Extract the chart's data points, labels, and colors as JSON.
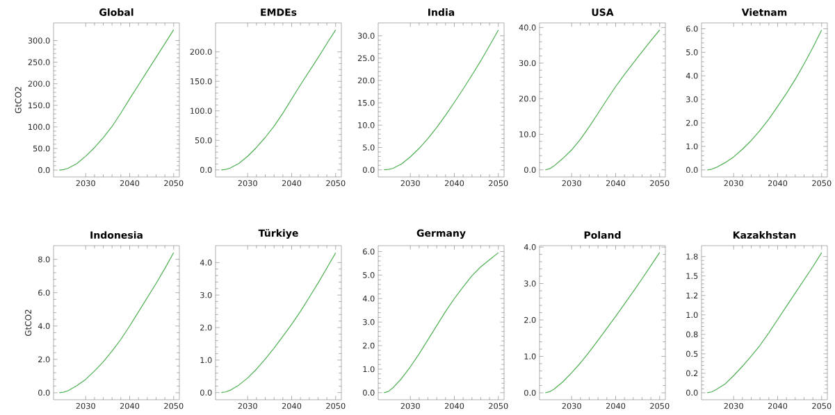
{
  "chart_data": [
    {
      "type": "line",
      "title": "Global",
      "ylabel": "GtCO2",
      "color": "#4caf50",
      "x": [
        2024,
        2025,
        2026,
        2028,
        2030,
        2032,
        2034,
        2036,
        2038,
        2040,
        2042,
        2044,
        2046,
        2048,
        2050
      ],
      "values": [
        0,
        1,
        4,
        15,
        32,
        52,
        75,
        101,
        132,
        165,
        197,
        229,
        261,
        293,
        325
      ],
      "xlim": [
        2022.7,
        2051.3
      ],
      "ylim": [
        -16,
        341
      ],
      "xticks": [
        2030,
        2040,
        2050
      ],
      "yticks": [
        {
          "value": 0,
          "label": "0.0"
        },
        {
          "value": 50,
          "label": "50.0"
        },
        {
          "value": 100,
          "label": "100.0"
        },
        {
          "value": 150,
          "label": "150.0"
        },
        {
          "value": 200,
          "label": "200.0"
        },
        {
          "value": 250,
          "label": "250.0"
        },
        {
          "value": 300,
          "label": "300.0"
        }
      ]
    },
    {
      "type": "line",
      "title": "EMDEs",
      "color": "#4caf50",
      "x": [
        2024,
        2025,
        2026,
        2028,
        2030,
        2032,
        2034,
        2036,
        2038,
        2040,
        2042,
        2044,
        2046,
        2048,
        2050
      ],
      "values": [
        0,
        0.7,
        3,
        11,
        23,
        38,
        55,
        74,
        96,
        120,
        144,
        167,
        190,
        214,
        237
      ],
      "xlim": [
        2022.7,
        2051.3
      ],
      "ylim": [
        -12,
        249
      ],
      "xticks": [
        2030,
        2040,
        2050
      ],
      "yticks": [
        {
          "value": 0,
          "label": "0.0"
        },
        {
          "value": 50,
          "label": "50.0"
        },
        {
          "value": 100,
          "label": "100.0"
        },
        {
          "value": 150,
          "label": "150.0"
        },
        {
          "value": 200,
          "label": "200.0"
        }
      ]
    },
    {
      "type": "line",
      "title": "India",
      "color": "#4caf50",
      "x": [
        2024,
        2025,
        2026,
        2028,
        2030,
        2032,
        2034,
        2036,
        2038,
        2040,
        2042,
        2044,
        2046,
        2048,
        2050
      ],
      "values": [
        0,
        0.1,
        0.3,
        1.3,
        2.9,
        4.8,
        7.0,
        9.5,
        12.2,
        15.1,
        18.1,
        21.2,
        24.4,
        27.8,
        31.3
      ],
      "xlim": [
        2022.7,
        2051.3
      ],
      "ylim": [
        -1.6,
        32.9
      ],
      "xticks": [
        2030,
        2040,
        2050
      ],
      "yticks": [
        {
          "value": 0,
          "label": "0.0"
        },
        {
          "value": 5,
          "label": "5.0"
        },
        {
          "value": 10,
          "label": "10.0"
        },
        {
          "value": 15,
          "label": "15.0"
        },
        {
          "value": 20,
          "label": "20.0"
        },
        {
          "value": 25,
          "label": "25.0"
        },
        {
          "value": 30,
          "label": "30.0"
        }
      ]
    },
    {
      "type": "line",
      "title": "USA",
      "color": "#4caf50",
      "x": [
        2024,
        2025,
        2026,
        2028,
        2030,
        2032,
        2034,
        2036,
        2038,
        2040,
        2042,
        2044,
        2046,
        2048,
        2050
      ],
      "values": [
        0,
        0.3,
        1.1,
        3.2,
        5.6,
        8.6,
        12.1,
        15.9,
        19.7,
        23.4,
        26.8,
        30.0,
        33.2,
        36.3,
        39.3
      ],
      "xlim": [
        2022.7,
        2051.3
      ],
      "ylim": [
        -2,
        41.3
      ],
      "xticks": [
        2030,
        2040,
        2050
      ],
      "yticks": [
        {
          "value": 0,
          "label": "0.0"
        },
        {
          "value": 10,
          "label": "10.0"
        },
        {
          "value": 20,
          "label": "20.0"
        },
        {
          "value": 30,
          "label": "30.0"
        },
        {
          "value": 40,
          "label": "40.0"
        }
      ]
    },
    {
      "type": "line",
      "title": "Vietnam",
      "color": "#4caf50",
      "x": [
        2024,
        2025,
        2026,
        2028,
        2030,
        2032,
        2034,
        2036,
        2038,
        2040,
        2042,
        2044,
        2046,
        2048,
        2050
      ],
      "values": [
        0,
        0.03,
        0.1,
        0.3,
        0.55,
        0.88,
        1.25,
        1.68,
        2.16,
        2.7,
        3.25,
        3.85,
        4.5,
        5.2,
        5.95
      ],
      "xlim": [
        2022.7,
        2051.3
      ],
      "ylim": [
        -0.3,
        6.25
      ],
      "xticks": [
        2030,
        2040,
        2050
      ],
      "yticks": [
        {
          "value": 0,
          "label": "0.0"
        },
        {
          "value": 1,
          "label": "1.0"
        },
        {
          "value": 2,
          "label": "2.0"
        },
        {
          "value": 3,
          "label": "3.0"
        },
        {
          "value": 4,
          "label": "4.0"
        },
        {
          "value": 5,
          "label": "5.0"
        },
        {
          "value": 6,
          "label": "6.0"
        }
      ]
    },
    {
      "type": "line",
      "title": "Indonesia",
      "ylabel": "GtCO2",
      "color": "#4caf50",
      "x": [
        2024,
        2025,
        2026,
        2028,
        2030,
        2032,
        2034,
        2036,
        2038,
        2040,
        2042,
        2044,
        2046,
        2048,
        2050
      ],
      "values": [
        0,
        0.03,
        0.12,
        0.42,
        0.8,
        1.3,
        1.85,
        2.5,
        3.2,
        4.0,
        4.85,
        5.7,
        6.55,
        7.45,
        8.4
      ],
      "xlim": [
        2022.7,
        2051.3
      ],
      "ylim": [
        -0.42,
        8.82
      ],
      "xticks": [
        2030,
        2040,
        2050
      ],
      "yticks": [
        {
          "value": 0,
          "label": "0.0"
        },
        {
          "value": 2,
          "label": "2.0"
        },
        {
          "value": 4,
          "label": "4.0"
        },
        {
          "value": 6,
          "label": "6.0"
        },
        {
          "value": 8,
          "label": "8.0"
        }
      ]
    },
    {
      "type": "line",
      "title": "Türkiye",
      "color": "#4caf50",
      "x": [
        2024,
        2025,
        2026,
        2028,
        2030,
        2032,
        2034,
        2036,
        2038,
        2040,
        2042,
        2044,
        2046,
        2048,
        2050
      ],
      "values": [
        0,
        0.02,
        0.07,
        0.23,
        0.45,
        0.72,
        1.03,
        1.37,
        1.73,
        2.1,
        2.5,
        2.93,
        3.37,
        3.83,
        4.3
      ],
      "xlim": [
        2022.7,
        2051.3
      ],
      "ylim": [
        -0.22,
        4.52
      ],
      "xticks": [
        2030,
        2040,
        2050
      ],
      "yticks": [
        {
          "value": 0,
          "label": "0.0"
        },
        {
          "value": 1,
          "label": "1.0"
        },
        {
          "value": 2,
          "label": "2.0"
        },
        {
          "value": 3,
          "label": "3.0"
        },
        {
          "value": 4,
          "label": "4.0"
        }
      ]
    },
    {
      "type": "line",
      "title": "Germany",
      "color": "#4caf50",
      "x": [
        2024,
        2025,
        2026,
        2028,
        2030,
        2032,
        2034,
        2036,
        2038,
        2040,
        2042,
        2044,
        2046,
        2048,
        2050
      ],
      "values": [
        0,
        0.05,
        0.2,
        0.6,
        1.1,
        1.65,
        2.25,
        2.85,
        3.45,
        4.0,
        4.5,
        4.97,
        5.35,
        5.65,
        5.95
      ],
      "xlim": [
        2022.7,
        2051.3
      ],
      "ylim": [
        -0.3,
        6.25
      ],
      "xticks": [
        2030,
        2040,
        2050
      ],
      "yticks": [
        {
          "value": 0,
          "label": "0.0"
        },
        {
          "value": 1,
          "label": "1.0"
        },
        {
          "value": 2,
          "label": "2.0"
        },
        {
          "value": 3,
          "label": "3.0"
        },
        {
          "value": 4,
          "label": "4.0"
        },
        {
          "value": 5,
          "label": "5.0"
        },
        {
          "value": 6,
          "label": "6.0"
        }
      ]
    },
    {
      "type": "line",
      "title": "Poland",
      "color": "#4caf50",
      "x": [
        2024,
        2025,
        2026,
        2028,
        2030,
        2032,
        2034,
        2036,
        2038,
        2040,
        2042,
        2044,
        2046,
        2048,
        2050
      ],
      "values": [
        0,
        0.03,
        0.1,
        0.3,
        0.55,
        0.82,
        1.12,
        1.44,
        1.77,
        2.1,
        2.44,
        2.78,
        3.13,
        3.49,
        3.85
      ],
      "xlim": [
        2022.7,
        2051.3
      ],
      "ylim": [
        -0.19,
        4.04
      ],
      "xticks": [
        2030,
        2040,
        2050
      ],
      "yticks": [
        {
          "value": 0,
          "label": "0.0"
        },
        {
          "value": 1,
          "label": "1.0"
        },
        {
          "value": 2,
          "label": "2.0"
        },
        {
          "value": 3,
          "label": "3.0"
        },
        {
          "value": 4,
          "label": "4.0"
        }
      ]
    },
    {
      "type": "line",
      "title": "Kazakhstan",
      "color": "#4caf50",
      "x": [
        2024,
        2025,
        2026,
        2028,
        2030,
        2032,
        2034,
        2036,
        2038,
        2040,
        2042,
        2044,
        2046,
        2048,
        2050
      ],
      "values": [
        0,
        0.01,
        0.04,
        0.11,
        0.22,
        0.34,
        0.47,
        0.61,
        0.77,
        0.94,
        1.11,
        1.28,
        1.45,
        1.62,
        1.8
      ],
      "xlim": [
        2022.7,
        2051.3
      ],
      "ylim": [
        -0.09,
        1.89
      ],
      "xticks": [
        2030,
        2040,
        2050
      ],
      "yticks": [
        {
          "value": 0,
          "label": "0.0"
        },
        {
          "value": 0.25,
          "label": "0.2"
        },
        {
          "value": 0.5,
          "label": "0.5"
        },
        {
          "value": 0.75,
          "label": "0.8"
        },
        {
          "value": 1,
          "label": "1.0"
        },
        {
          "value": 1.25,
          "label": "1.2"
        },
        {
          "value": 1.5,
          "label": "1.5"
        },
        {
          "value": 1.75,
          "label": "1.8"
        }
      ]
    }
  ]
}
